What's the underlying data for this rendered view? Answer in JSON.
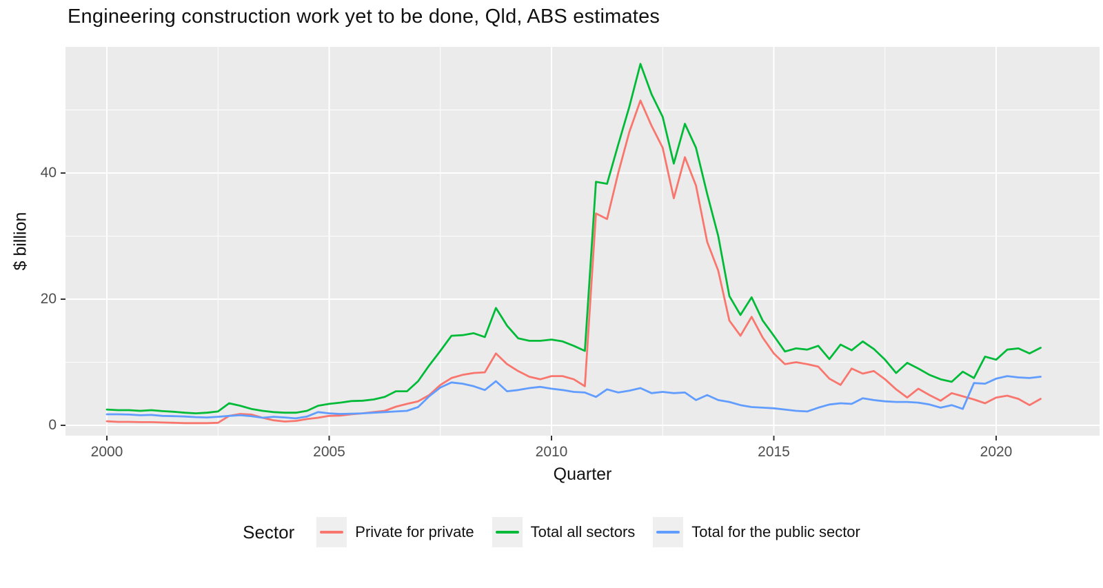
{
  "title": "Engineering construction work yet to be done, Qld, ABS estimates",
  "y_axis": {
    "label": "$ billion",
    "ticks": [
      0,
      20,
      40
    ],
    "minor_ticks": [
      10,
      30,
      50
    ]
  },
  "x_axis": {
    "label": "Quarter",
    "ticks": [
      2000,
      2005,
      2010,
      2015,
      2020
    ],
    "minor_ticks": [
      2002.5,
      2007.5,
      2012.5,
      2017.5,
      2022.5
    ]
  },
  "legend": {
    "title": "Sector",
    "entries": [
      {
        "label": "Private for private",
        "color": "#F8766D"
      },
      {
        "label": "Total all sectors",
        "color": "#00BA38"
      },
      {
        "label": "Total for the public sector",
        "color": "#619CFF"
      }
    ]
  },
  "colors": {
    "panel_background": "#EBEBEB",
    "gridline": "#FFFFFF",
    "axis_text": "#4D4D4D",
    "title_text": "#111111",
    "series_red": "#F8766D",
    "series_green": "#00BA38",
    "series_blue": "#619CFF"
  },
  "chart_data": {
    "type": "line",
    "title": "Engineering construction work yet to be done, Qld, ABS estimates",
    "xlabel": "Quarter",
    "ylabel": "$ billion",
    "x_start_year": 2000.0,
    "x_step_years": 0.25,
    "first_quarter": "2000 Q1",
    "last_quarter": "2021 Q1",
    "xlim": [
      1999.1,
      2022.35
    ],
    "ylim": [
      -1.7,
      60
    ],
    "x_ticks": [
      2000,
      2005,
      2010,
      2015,
      2020
    ],
    "x_minor_ticks": [
      2002.5,
      2007.5,
      2012.5,
      2017.5,
      2022.5
    ],
    "y_ticks": [
      0,
      20,
      40
    ],
    "y_minor_ticks": [
      10,
      30,
      50
    ],
    "grid": "white major+minor on grey panel",
    "legend_position": "bottom",
    "series": [
      {
        "name": "Private for private",
        "color": "#F8766D",
        "values": [
          0.65,
          0.55,
          0.55,
          0.5,
          0.5,
          0.45,
          0.4,
          0.35,
          0.35,
          0.35,
          0.4,
          1.5,
          1.8,
          1.7,
          1.2,
          0.8,
          0.6,
          0.7,
          1.0,
          1.2,
          1.5,
          1.55,
          1.75,
          1.9,
          2.1,
          2.3,
          2.95,
          3.4,
          3.8,
          4.8,
          6.4,
          7.5,
          8.0,
          8.3,
          8.4,
          11.4,
          9.7,
          8.6,
          7.7,
          7.3,
          7.8,
          7.8,
          7.3,
          6.2,
          33.6,
          32.7,
          40.0,
          46.5,
          51.5,
          47.5,
          44.0,
          36.0,
          42.5,
          38.0,
          29.1,
          24.5,
          16.6,
          14.2,
          17.2,
          13.9,
          11.4,
          9.7,
          10.0,
          9.7,
          9.3,
          7.4,
          6.4,
          9.0,
          8.2,
          8.6,
          7.3,
          5.7,
          4.4,
          5.8,
          4.8,
          3.9,
          5.1,
          4.6,
          4.1,
          3.5,
          4.4,
          4.7,
          4.2,
          3.2,
          4.2
        ]
      },
      {
        "name": "Total all sectors",
        "color": "#00BA38",
        "values": [
          2.5,
          2.4,
          2.4,
          2.3,
          2.4,
          2.25,
          2.15,
          2.0,
          1.9,
          2.0,
          2.2,
          3.5,
          3.1,
          2.6,
          2.3,
          2.1,
          2.0,
          2.0,
          2.3,
          3.1,
          3.4,
          3.6,
          3.85,
          3.9,
          4.1,
          4.5,
          5.4,
          5.4,
          7.0,
          9.5,
          11.8,
          14.2,
          14.3,
          14.6,
          14.0,
          18.6,
          15.8,
          13.8,
          13.4,
          13.4,
          13.6,
          13.3,
          12.6,
          11.8,
          38.6,
          38.3,
          44.5,
          50.5,
          57.3,
          52.5,
          48.9,
          41.5,
          47.8,
          44.0,
          36.7,
          30.0,
          20.5,
          17.5,
          20.3,
          16.6,
          14.2,
          11.7,
          12.2,
          12.0,
          12.6,
          10.5,
          12.8,
          11.9,
          13.3,
          12.1,
          10.4,
          8.3,
          9.9,
          9.0,
          8.0,
          7.3,
          6.9,
          8.5,
          7.5,
          10.9,
          10.4,
          12.0,
          12.2,
          11.4,
          12.3
        ]
      },
      {
        "name": "Total for the public sector",
        "color": "#619CFF",
        "values": [
          1.75,
          1.75,
          1.7,
          1.6,
          1.65,
          1.5,
          1.45,
          1.4,
          1.3,
          1.25,
          1.35,
          1.5,
          1.6,
          1.45,
          1.2,
          1.35,
          1.25,
          1.1,
          1.4,
          2.1,
          1.9,
          1.8,
          1.85,
          1.9,
          2.0,
          2.1,
          2.2,
          2.3,
          2.9,
          4.6,
          6.0,
          6.8,
          6.6,
          6.2,
          5.6,
          7.0,
          5.4,
          5.6,
          5.9,
          6.1,
          5.8,
          5.6,
          5.3,
          5.2,
          4.5,
          5.7,
          5.2,
          5.5,
          5.9,
          5.1,
          5.3,
          5.1,
          5.2,
          4.0,
          4.8,
          4.0,
          3.7,
          3.2,
          2.9,
          2.8,
          2.7,
          2.5,
          2.3,
          2.2,
          2.8,
          3.3,
          3.5,
          3.4,
          4.3,
          4.0,
          3.8,
          3.7,
          3.7,
          3.6,
          3.3,
          2.8,
          3.2,
          2.6,
          6.7,
          6.6,
          7.4,
          7.8,
          7.6,
          7.5,
          7.7
        ]
      }
    ]
  }
}
